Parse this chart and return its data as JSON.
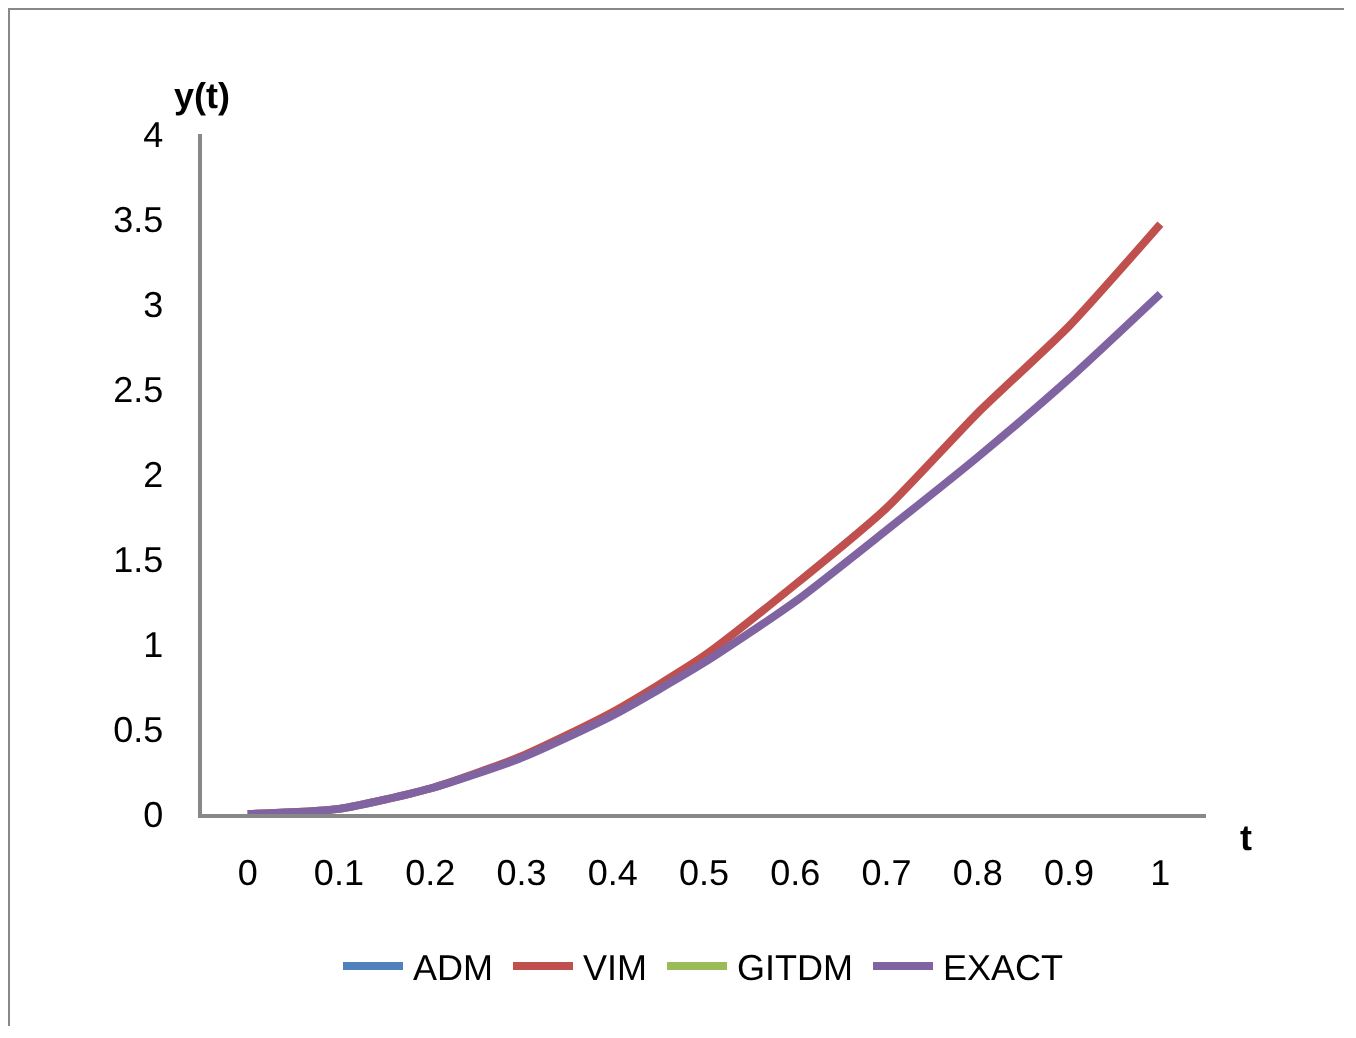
{
  "chart_data": {
    "type": "line",
    "xlabel": "t",
    "ylabel": "y(t)",
    "categories": [
      "0",
      "0.1",
      "0.2",
      "0.3",
      "0.4",
      "0.5",
      "0.6",
      "0.7",
      "0.8",
      "0.9",
      "1"
    ],
    "series": [
      {
        "name": "ADM",
        "color": "#4f81bd",
        "values": [
          null,
          null,
          null,
          null,
          null,
          null,
          null,
          null,
          null,
          null,
          null
        ]
      },
      {
        "name": "VIM",
        "color": "#c0504d",
        "values": [
          0,
          0.03,
          0.15,
          0.34,
          0.6,
          0.93,
          1.35,
          1.8,
          2.36,
          2.87,
          3.47
        ]
      },
      {
        "name": "GITDM",
        "color": "#9bbb59",
        "values": [
          null,
          null,
          null,
          null,
          null,
          null,
          null,
          null,
          null,
          null,
          null
        ]
      },
      {
        "name": "EXACT",
        "color": "#8064a2",
        "values": [
          0,
          0.03,
          0.15,
          0.33,
          0.58,
          0.89,
          1.25,
          1.67,
          2.1,
          2.56,
          3.06
        ]
      }
    ],
    "ylim": [
      0,
      4
    ],
    "yticks": [
      0,
      0.5,
      1,
      1.5,
      2,
      2.5,
      3,
      3.5,
      4
    ],
    "grid": false,
    "legend": "bottom",
    "marker": "none",
    "line_style": "solid"
  }
}
